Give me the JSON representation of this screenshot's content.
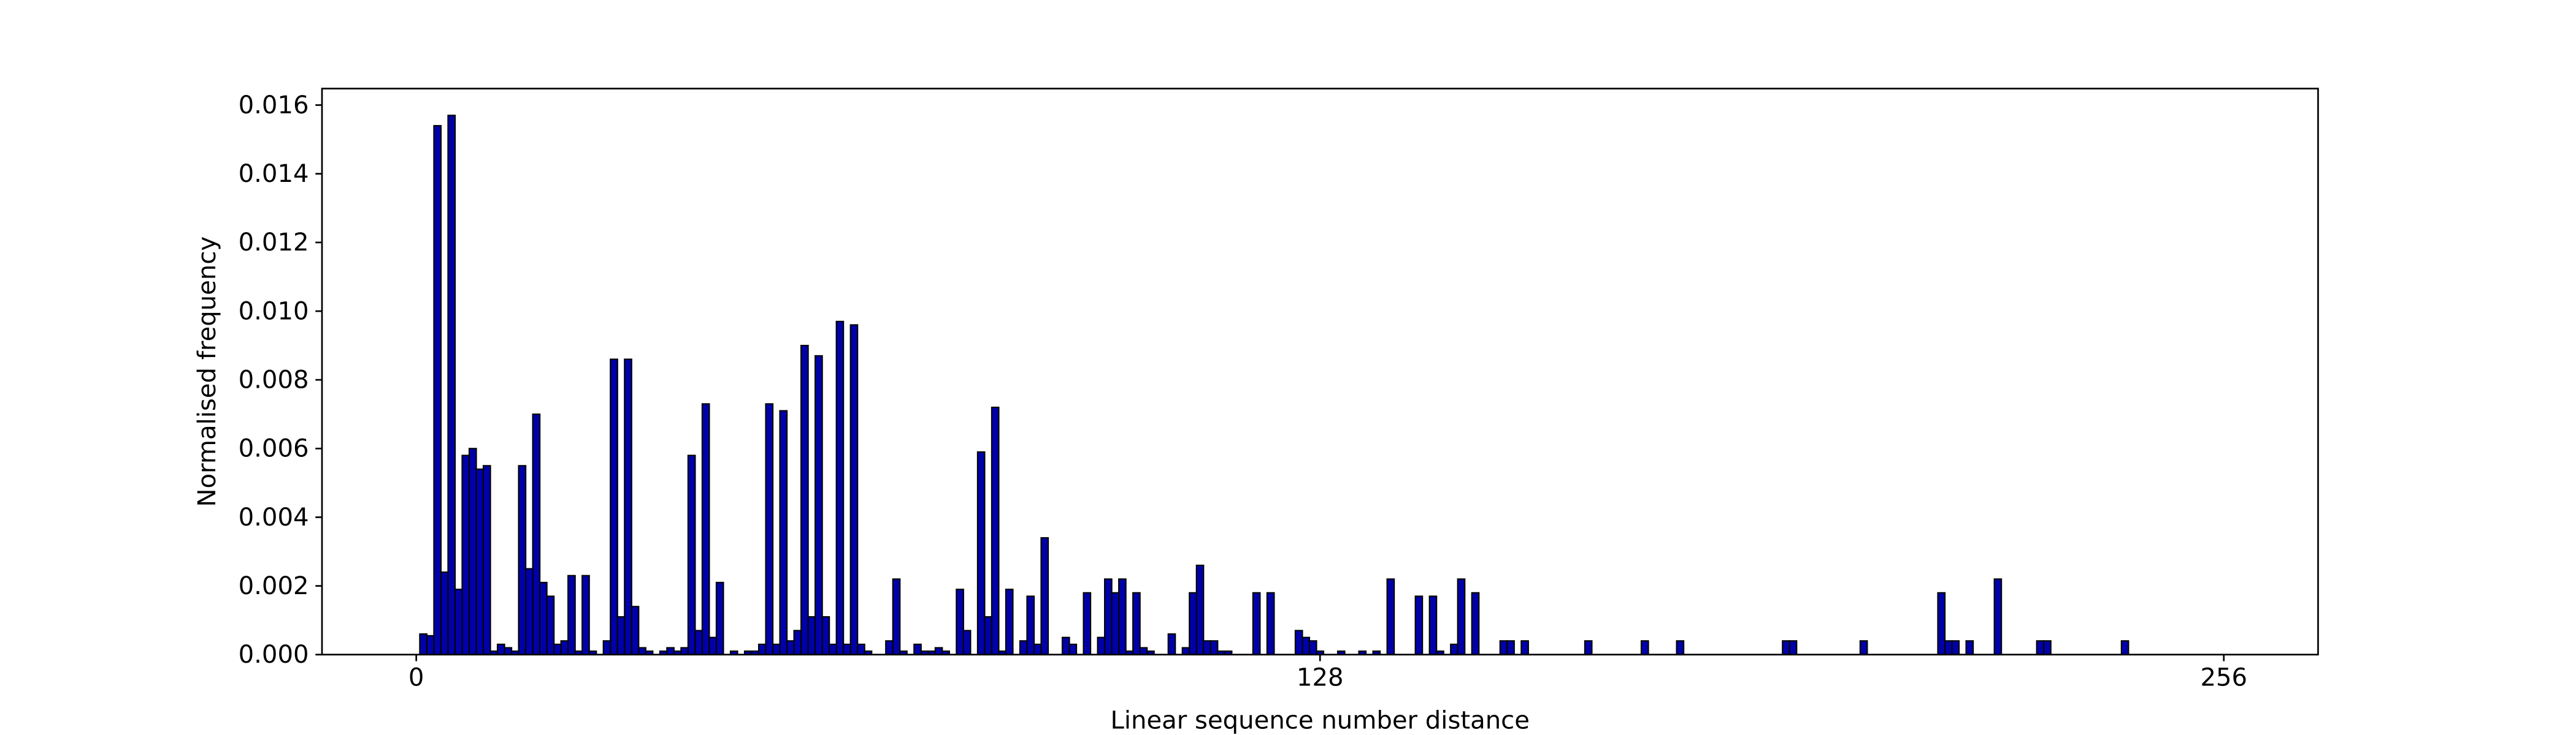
{
  "chart_data": {
    "type": "histogram",
    "xlabel": "Linear sequence number distance",
    "ylabel": "Normalised frequency",
    "color": "#0000aa",
    "edgecolor": "#000000",
    "xlim": [
      -13.35,
      269.35
    ],
    "ylim": [
      0,
      0.01648
    ],
    "xticks": [
      0,
      128,
      256
    ],
    "yticks": [
      {
        "value": 0,
        "label": "0.000"
      },
      {
        "value": 0.002,
        "label": "0.002"
      },
      {
        "value": 0.004,
        "label": "0.004"
      },
      {
        "value": 0.006,
        "label": "0.006"
      },
      {
        "value": 0.008,
        "label": "0.008"
      },
      {
        "value": 0.01,
        "label": "0.010"
      },
      {
        "value": 0.012,
        "label": "0.012"
      },
      {
        "value": 0.014,
        "label": "0.014"
      },
      {
        "value": 0.016,
        "label": "0.016"
      }
    ],
    "bins": [
      -0.5,
      0.5,
      1.5,
      2.5,
      3.5,
      4.5,
      5.5,
      6.5,
      7.5,
      8.5,
      9.5,
      10.5,
      11.5,
      12.5,
      13.5,
      14.5,
      15.5,
      16.5,
      17.5,
      18.5,
      19.5,
      20.5,
      21.5,
      22.5,
      23.5,
      24.5,
      25.5,
      26.5,
      27.5,
      28.5,
      29.5,
      30.5,
      31.5,
      32.5,
      33.5,
      34.5,
      35.5,
      36.5,
      37.5,
      38.5,
      39.5,
      40.5,
      41.5,
      42.5,
      43.5,
      44.5,
      45.5,
      46.5,
      47.5,
      48.5,
      49.5,
      50.5,
      51.5,
      52.5,
      53.5,
      54.5,
      55.5,
      56.5,
      57.5,
      58.5,
      59.5,
      60.5,
      61.5,
      62.5,
      63.5,
      64.5,
      65.5,
      66.5,
      67.5,
      68.5,
      69.5,
      70.5,
      71.5,
      72.5,
      73.5,
      74.5,
      75.5,
      76.5,
      77.5,
      78.5,
      79.5,
      80.5,
      81.5,
      82.5,
      83.5,
      84.5,
      85.5,
      86.5,
      87.5,
      88.5,
      89.5,
      90.5,
      91.5,
      92.5,
      93.5,
      94.5,
      95.5,
      96.5,
      97.5,
      98.5,
      99.5,
      100.5,
      101.5,
      102.5,
      103.5,
      104.5,
      105.5,
      106.5,
      107.5,
      108.5,
      109.5,
      110.5,
      111.5,
      112.5,
      113.5,
      114.5,
      115.5,
      116.5,
      117.5,
      118.5,
      119.5,
      120.5,
      121.5,
      122.5,
      123.5,
      124.5,
      125.5,
      126.5,
      127.5,
      128.5,
      129.5,
      130.5,
      131.5,
      132.5,
      133.5,
      134.5,
      135.5,
      136.5,
      137.5,
      138.5,
      139.5,
      140.5,
      141.5,
      142.5,
      143.5,
      144.5,
      145.5,
      146.5,
      147.5,
      148.5,
      149.5,
      150.5,
      151.5,
      152.5,
      153.5,
      154.5,
      155.5,
      156.5,
      157.5,
      158.5,
      159.5,
      160.5,
      161.5,
      162.5,
      163.5,
      164.5,
      165.5,
      166.5,
      167.5,
      168.5,
      169.5,
      170.5,
      171.5,
      172.5,
      173.5,
      174.5,
      175.5,
      176.5,
      177.5,
      178.5,
      179.5,
      180.5,
      181.5,
      182.5,
      183.5,
      184.5,
      185.5,
      186.5,
      187.5,
      188.5,
      189.5,
      190.5,
      191.5,
      192.5,
      193.5,
      194.5,
      195.5,
      196.5,
      197.5,
      198.5,
      199.5,
      200.5,
      201.5,
      202.5,
      203.5,
      204.5,
      205.5,
      206.5,
      207.5,
      208.5,
      209.5,
      210.5,
      211.5,
      212.5,
      213.5,
      214.5,
      215.5,
      216.5,
      217.5,
      218.5,
      219.5,
      220.5,
      221.5,
      222.5,
      223.5,
      224.5,
      225.5,
      226.5,
      227.5,
      228.5,
      229.5,
      230.5,
      231.5,
      232.5,
      233.5,
      234.5,
      235.5,
      236.5,
      237.5,
      238.5,
      239.5,
      240.5,
      241.5,
      242.5,
      243.5,
      244.5,
      245.5,
      246.5,
      247.5,
      248.5,
      249.5,
      250.5,
      251.5,
      252.5,
      253.5,
      254.5,
      255.5,
      256.5
    ],
    "values": [
      0,
      0.0006,
      0.00055,
      0.0154,
      0.0024,
      0.0157,
      0.0019,
      0.0058,
      0.006,
      0.0054,
      0.0055,
      0.0001,
      0.0003,
      0.0002,
      0.0001,
      0.0055,
      0.0025,
      0.007,
      0.0021,
      0.0017,
      0.0003,
      0.0004,
      0.0023,
      0.0001,
      0.0023,
      0.0001,
      0,
      0.0004,
      0.0086,
      0.0011,
      0.0086,
      0.0014,
      0.0002,
      0.0001,
      0,
      0.0001,
      0.0002,
      0.0001,
      0.0002,
      0.0058,
      0.0007,
      0.0073,
      0.0005,
      0.0021,
      0,
      0.0001,
      0,
      0.0001,
      0.0001,
      0.0003,
      0.0073,
      0.0003,
      0.0071,
      0.0004,
      0.0007,
      0.009,
      0.0011,
      0.0087,
      0.0011,
      0.0003,
      0.0097,
      0.0003,
      0.0096,
      0.0003,
      0.0001,
      0,
      0,
      0.0004,
      0.0022,
      0.0001,
      0,
      0.0003,
      0.0001,
      0.0001,
      0.0002,
      0.0001,
      0,
      0.0019,
      0.0007,
      0,
      0.0059,
      0.0011,
      0.0072,
      0.0001,
      0.0019,
      0,
      0.0004,
      0.0017,
      0.0003,
      0.0034,
      0,
      0,
      0.0005,
      0.0003,
      0,
      0.0018,
      0,
      0.0005,
      0.0022,
      0.0018,
      0.0022,
      0.0001,
      0.0018,
      0.0002,
      0.0001,
      0,
      0,
      0.0006,
      0,
      0.0002,
      0.0018,
      0.0026,
      0.0004,
      0.0004,
      0.0001,
      0.0001,
      0,
      0,
      0,
      0.0018,
      0,
      0.0018,
      0,
      0,
      0,
      0.0007,
      0.0005,
      0.0004,
      0.0001,
      0,
      0,
      0.0001,
      0,
      0,
      0.0001,
      0,
      0.0001,
      0,
      0.0022,
      0,
      0,
      0,
      0.0017,
      0,
      0.0017,
      0.0001,
      0,
      0.0003,
      0.0022,
      0,
      0.0018,
      0,
      0,
      0,
      0.0004,
      0.0004,
      0,
      0.0004,
      0,
      0,
      0,
      0,
      0,
      0,
      0,
      0,
      0.0004,
      0,
      0,
      0,
      0,
      0,
      0,
      0,
      0.0004,
      0,
      0,
      0,
      0,
      0.0004,
      0,
      0,
      0,
      0,
      0,
      0,
      0,
      0,
      0,
      0,
      0,
      0,
      0,
      0,
      0.0004,
      0.0004,
      0,
      0,
      0,
      0,
      0,
      0,
      0,
      0,
      0,
      0.0004,
      0,
      0,
      0,
      0,
      0,
      0,
      0,
      0,
      0,
      0,
      0.0018,
      0.0004,
      0.0004,
      0,
      0.0004,
      0,
      0,
      0,
      0.0022,
      0,
      0,
      0,
      0,
      0,
      0.0004,
      0.0004,
      0,
      0,
      0,
      0,
      0,
      0,
      0,
      0,
      0,
      0,
      0.0004,
      0,
      0,
      0,
      0,
      0,
      0,
      0,
      0,
      0,
      0,
      0,
      0,
      0,
      0
    ]
  }
}
